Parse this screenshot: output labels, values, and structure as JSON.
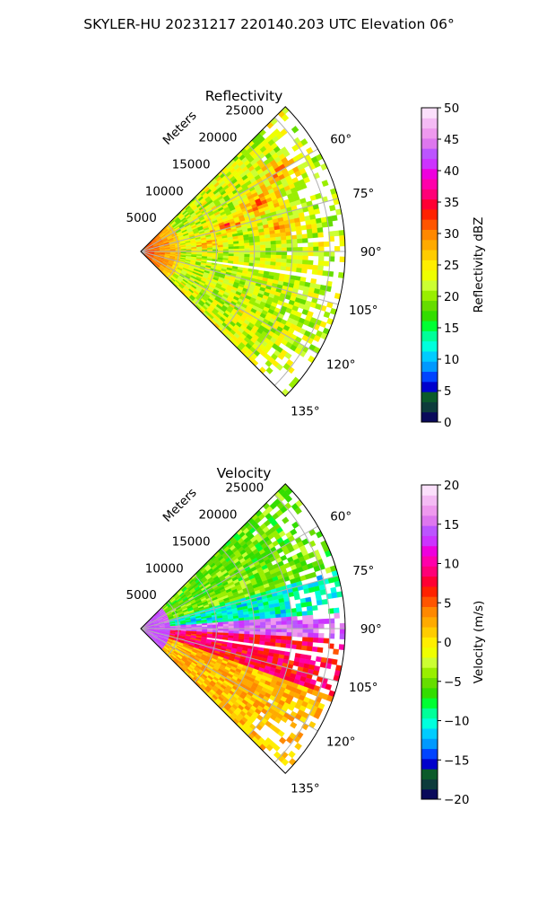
{
  "figure": {
    "title": "SKYLER-HU  20231217  220140.203 UTC Elevation 06°"
  },
  "chart_data": [
    {
      "type": "heatmap",
      "subtype": "radar-ppi-sector",
      "title": "Reflectivity",
      "range_label": "Meters",
      "range_ticks": [
        5000,
        10000,
        15000,
        20000,
        25000
      ],
      "range_tick_labels": [
        "5000",
        "10000",
        "15000",
        "20000",
        "25000"
      ],
      "range_max": 27000,
      "azimuth_range": [
        45,
        135
      ],
      "azimuth_ticks": [
        60,
        75,
        90,
        105,
        120,
        135
      ],
      "azimuth_tick_labels": [
        "60°",
        "75°",
        "90°",
        "105°",
        "120°",
        "135°"
      ],
      "grid": true,
      "colorbar": {
        "label": "Reflectivity dBZ",
        "min": 0,
        "max": 50,
        "ticks": [
          0,
          5,
          10,
          15,
          20,
          25,
          30,
          35,
          40,
          45,
          50
        ],
        "tick_labels": [
          "0",
          "5",
          "10",
          "15",
          "20",
          "25",
          "30",
          "35",
          "40",
          "45",
          "50"
        ],
        "colors": [
          "#0a0a5a",
          "#0d3b3b",
          "#0b5a2a",
          "#0000cc",
          "#0044ff",
          "#0099ff",
          "#00ccff",
          "#00ffdd",
          "#00ff99",
          "#00ff33",
          "#33dd00",
          "#66dd00",
          "#99ee00",
          "#ccff33",
          "#eeff00",
          "#ffee00",
          "#ffcc00",
          "#ffaa00",
          "#ff8800",
          "#ff5500",
          "#ff2200",
          "#ff0033",
          "#ff0077",
          "#ff00aa",
          "#ee00dd",
          "#cc33ff",
          "#bb55ff",
          "#dd77ee",
          "#ee99ee",
          "#f4bbf4",
          "#fbe0fb"
        ]
      },
      "field": {
        "base_value": 22,
        "variation": 4,
        "near_range_value": 33,
        "near_range_extent": 5000,
        "hotspots": [
          {
            "az": 68,
            "r": 17000,
            "value": 30
          },
          {
            "az": 73,
            "r": 12000,
            "value": 30
          },
          {
            "az": 80,
            "r": 19000,
            "value": 29
          },
          {
            "az": 60,
            "r": 21000,
            "value": 28
          },
          {
            "az": 84,
            "r": 9000,
            "value": 27
          }
        ],
        "gap_azimuth": 98,
        "edge_coverage": "ragged"
      }
    },
    {
      "type": "heatmap",
      "subtype": "radar-ppi-sector",
      "title": "Velocity",
      "range_label": "Meters",
      "range_ticks": [
        5000,
        10000,
        15000,
        20000,
        25000
      ],
      "range_tick_labels": [
        "5000",
        "10000",
        "15000",
        "20000",
        "25000"
      ],
      "range_max": 27000,
      "azimuth_range": [
        45,
        135
      ],
      "azimuth_ticks": [
        60,
        75,
        90,
        105,
        120,
        135
      ],
      "azimuth_tick_labels": [
        "60°",
        "75°",
        "90°",
        "105°",
        "120°",
        "135°"
      ],
      "grid": true,
      "colorbar": {
        "label": "Velocity (m/s)",
        "min": -20,
        "max": 20,
        "ticks": [
          -20,
          -15,
          -10,
          -5,
          0,
          5,
          10,
          15,
          20
        ],
        "tick_labels": [
          "−20",
          "−15",
          "−10",
          "−5",
          "0",
          "5",
          "10",
          "15",
          "20"
        ],
        "colors": [
          "#0a0a5a",
          "#0d3b3b",
          "#0b5a2a",
          "#0000cc",
          "#0044ff",
          "#0099ff",
          "#00ccff",
          "#00ffdd",
          "#00ff99",
          "#00ff33",
          "#33dd00",
          "#66dd00",
          "#99ee00",
          "#ccff33",
          "#eeff00",
          "#ffee00",
          "#ffcc00",
          "#ffaa00",
          "#ff8800",
          "#ff5500",
          "#ff2200",
          "#ff0033",
          "#ff0077",
          "#ff00aa",
          "#ee00dd",
          "#cc33ff",
          "#bb55ff",
          "#dd77ee",
          "#ee99ee",
          "#f4bbf4",
          "#fbe0fb"
        ]
      },
      "field": {
        "regions": [
          {
            "az_from": 45,
            "az_to": 74,
            "value": -5
          },
          {
            "az_from": 74,
            "az_to": 86,
            "value": -10
          },
          {
            "az_from": 86,
            "az_to": 93,
            "value": 15
          },
          {
            "az_from": 93,
            "az_to": 110,
            "value": 8
          },
          {
            "az_from": 110,
            "az_to": 135,
            "value": 2
          }
        ],
        "near_range_value": 14,
        "near_range_extent": 4000,
        "variation": 2.5,
        "gap_azimuth": 98,
        "edge_coverage": "ragged"
      }
    }
  ]
}
